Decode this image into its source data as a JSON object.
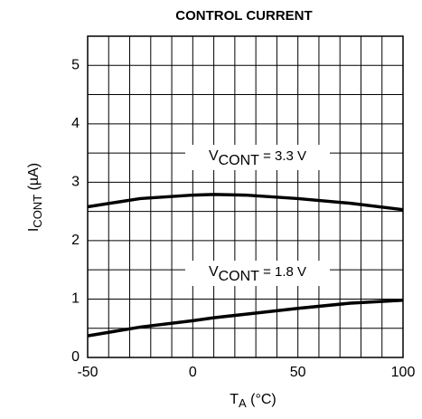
{
  "chart_data": {
    "type": "line",
    "title": "CONTROL CURRENT",
    "x_label": {
      "main": "T",
      "sub": "A",
      "after": " (°C)"
    },
    "y_label": {
      "main": "I",
      "sub": "CONT",
      "after": " (µA)"
    },
    "x": [
      -50,
      -25,
      0,
      10,
      25,
      50,
      75,
      100
    ],
    "series": [
      {
        "name": {
          "main": "V",
          "sub": "CONT",
          "after": " = 3.3 V"
        },
        "color": "#000000",
        "values": [
          2.58,
          2.72,
          2.78,
          2.79,
          2.78,
          2.72,
          2.64,
          2.53
        ]
      },
      {
        "name": {
          "main": "V",
          "sub": "CONT",
          "after": " = 1.8 V"
        },
        "color": "#000000",
        "values": [
          0.37,
          0.52,
          0.63,
          0.68,
          0.74,
          0.84,
          0.93,
          0.98
        ]
      }
    ],
    "xlim": [
      -50,
      100
    ],
    "xticks": [
      -50,
      0,
      50,
      100
    ],
    "ylim": [
      0,
      5.5
    ],
    "yticks": [
      0,
      1,
      2,
      3,
      4,
      5
    ],
    "grid": true,
    "grid_subdivisions": {
      "x": 5,
      "y": 2
    }
  }
}
